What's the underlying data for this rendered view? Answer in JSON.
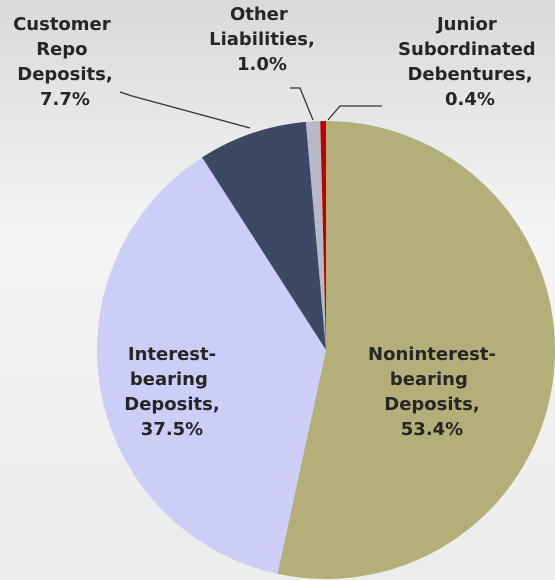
{
  "chart_data": {
    "type": "pie",
    "categories": [
      "Noninterest-bearing Deposits,",
      "Interest-bearing Deposits,",
      "Customer Repo Deposits,",
      "Other Liabilities,",
      "Junior Subordinated Debentures,"
    ],
    "values": [
      53.4,
      37.5,
      7.7,
      1.0,
      0.4
    ],
    "value_labels": [
      "53.4%",
      "37.5%",
      "7.7%",
      "1.0%",
      "0.4%"
    ],
    "colors": [
      "#b4af79",
      "#cdcef8",
      "#3c4864",
      "#b6bac6",
      "#c00000"
    ]
  }
}
